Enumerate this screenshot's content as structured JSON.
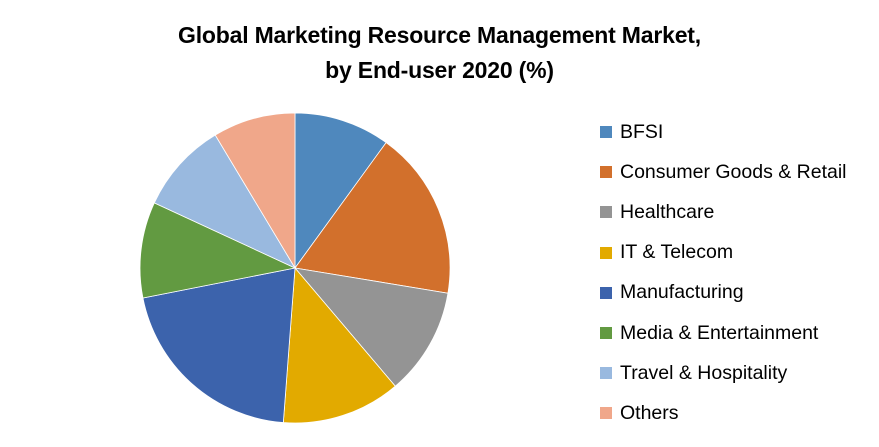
{
  "chart_data": {
    "type": "pie",
    "title": "Global Marketing Resource Management Market, by End-user 2020 (%)",
    "title_lines": [
      "Global Marketing Resource Management Market,",
      "by End-user 2020 (%)"
    ],
    "categories": [
      "BFSI",
      "Consumer Goods & Retail",
      "Healthcare",
      "IT & Telecom",
      "Manufacturing",
      "Media & Entertainment",
      "Travel & Hospitality",
      "Others"
    ],
    "values": [
      10.0,
      17.6,
      11.2,
      12.4,
      20.7,
      10.0,
      9.5,
      8.6
    ],
    "colors": [
      "#4F88BD",
      "#D2702C",
      "#949494",
      "#E2AA00",
      "#3C63AC",
      "#629A41",
      "#99B9DF",
      "#F0A78A"
    ],
    "start_angle_deg": 0,
    "direction": "clockwise",
    "legend_position": "right",
    "data_labels": false
  }
}
